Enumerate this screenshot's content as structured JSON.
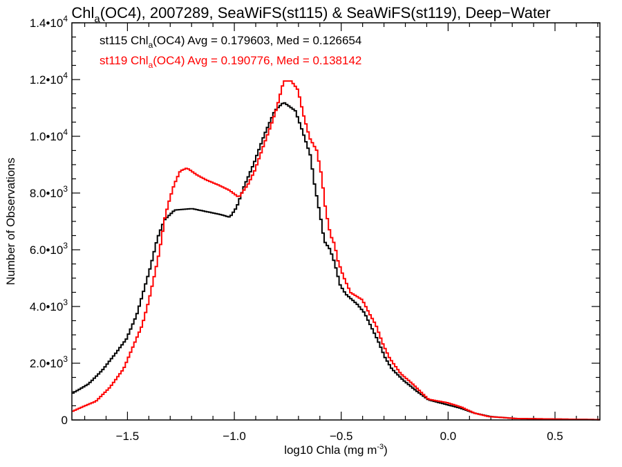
{
  "chart_data": {
    "type": "line",
    "title": {
      "pre": "Chl",
      "sub": "a",
      "post": "(OC4), 2007289, SeaWiFS(st115) & SeaWiFS(st119), Deep−Water"
    },
    "xlabel": {
      "pre": "log10 Chla (mg m",
      "sup": "-3",
      "post": ")"
    },
    "ylabel": "Number of Observations",
    "xlim": [
      -1.76,
      0.71
    ],
    "ylim": [
      0,
      14000
    ],
    "x_ticks": [
      {
        "value": -1.5,
        "label": "−1.5"
      },
      {
        "value": -1.0,
        "label": "−1.0"
      },
      {
        "value": -0.5,
        "label": "−0.5"
      },
      {
        "value": 0.0,
        "label": "0.0"
      },
      {
        "value": 0.5,
        "label": "0.5"
      }
    ],
    "y_ticks": [
      {
        "value": 0,
        "mant": "0",
        "exp": ""
      },
      {
        "value": 2000,
        "mant": "2.0•10",
        "exp": "3"
      },
      {
        "value": 4000,
        "mant": "4.0•10",
        "exp": "3"
      },
      {
        "value": 6000,
        "mant": "6.0•10",
        "exp": "3"
      },
      {
        "value": 8000,
        "mant": "8.0•10",
        "exp": "3"
      },
      {
        "value": 10000,
        "mant": "1.0•10",
        "exp": "4"
      },
      {
        "value": 12000,
        "mant": "1.2•10",
        "exp": "4"
      },
      {
        "value": 14000,
        "mant": "1.4•10",
        "exp": "4"
      }
    ],
    "bin_width": 0.01,
    "legend_placement": "top-left",
    "series": [
      {
        "name": "st115",
        "color": "#000000",
        "legend": {
          "pre": "st115 Chl",
          "sub": "a",
          "post": "(OC4) Avg = 0.179603, Med = 0.126654"
        },
        "points": [
          [
            -1.766,
            900
          ],
          [
            -1.682,
            1270
          ],
          [
            -1.618,
            1750
          ],
          [
            -1.553,
            2370
          ],
          [
            -1.505,
            2850
          ],
          [
            -1.457,
            3700
          ],
          [
            -1.424,
            4560
          ],
          [
            -1.392,
            5400
          ],
          [
            -1.36,
            6400
          ],
          [
            -1.327,
            7050
          ],
          [
            -1.279,
            7400
          ],
          [
            -1.198,
            7450
          ],
          [
            -1.134,
            7350
          ],
          [
            -1.069,
            7250
          ],
          [
            -1.021,
            7150
          ],
          [
            -0.989,
            7500
          ],
          [
            -0.956,
            8200
          ],
          [
            -0.908,
            9050
          ],
          [
            -0.86,
            10050
          ],
          [
            -0.811,
            10900
          ],
          [
            -0.769,
            11200
          ],
          [
            -0.715,
            10900
          ],
          [
            -0.682,
            10200
          ],
          [
            -0.643,
            9300
          ],
          [
            -0.627,
            8400
          ],
          [
            -0.595,
            7070
          ],
          [
            -0.579,
            6300
          ],
          [
            -0.553,
            6020
          ],
          [
            -0.531,
            5540
          ],
          [
            -0.505,
            4760
          ],
          [
            -0.479,
            4440
          ],
          [
            -0.424,
            4070
          ],
          [
            -0.392,
            3780
          ],
          [
            -0.36,
            3290
          ],
          [
            -0.327,
            2780
          ],
          [
            -0.295,
            2200
          ],
          [
            -0.263,
            1800
          ],
          [
            -0.208,
            1390
          ],
          [
            -0.156,
            1070
          ],
          [
            -0.092,
            710
          ],
          [
            -0.005,
            540
          ],
          [
            0.06,
            410
          ],
          [
            0.124,
            240
          ],
          [
            0.198,
            120
          ],
          [
            0.318,
            50
          ],
          [
            0.71,
            10
          ]
        ]
      },
      {
        "name": "st119",
        "color": "#ff0000",
        "legend": {
          "pre": "st119 Chl",
          "sub": "a",
          "post": "(OC4) Avg = 0.190776, Med = 0.138142"
        },
        "points": [
          [
            -1.776,
            240
          ],
          [
            -1.711,
            460
          ],
          [
            -1.647,
            660
          ],
          [
            -1.582,
            1150
          ],
          [
            -1.518,
            1800
          ],
          [
            -1.463,
            2780
          ],
          [
            -1.431,
            3340
          ],
          [
            -1.399,
            4240
          ],
          [
            -1.373,
            5120
          ],
          [
            -1.35,
            5950
          ],
          [
            -1.324,
            7170
          ],
          [
            -1.302,
            7800
          ],
          [
            -1.282,
            8290
          ],
          [
            -1.253,
            8780
          ],
          [
            -1.221,
            8880
          ],
          [
            -1.173,
            8630
          ],
          [
            -1.131,
            8460
          ],
          [
            -1.076,
            8290
          ],
          [
            -1.024,
            8100
          ],
          [
            -0.979,
            7850
          ],
          [
            -0.937,
            8290
          ],
          [
            -0.905,
            8780
          ],
          [
            -0.863,
            9680
          ],
          [
            -0.831,
            10340
          ],
          [
            -0.802,
            10980
          ],
          [
            -0.769,
            11950
          ],
          [
            -0.734,
            11950
          ],
          [
            -0.702,
            11630
          ],
          [
            -0.679,
            10830
          ],
          [
            -0.647,
            9930
          ],
          [
            -0.615,
            9510
          ],
          [
            -0.592,
            8630
          ],
          [
            -0.573,
            7410
          ],
          [
            -0.55,
            6510
          ],
          [
            -0.531,
            6190
          ],
          [
            -0.515,
            5610
          ],
          [
            -0.489,
            5050
          ],
          [
            -0.456,
            4490
          ],
          [
            -0.402,
            4240
          ],
          [
            -0.369,
            3760
          ],
          [
            -0.337,
            3340
          ],
          [
            -0.305,
            2680
          ],
          [
            -0.273,
            2170
          ],
          [
            -0.221,
            1630
          ],
          [
            -0.166,
            1270
          ],
          [
            -0.092,
            730
          ],
          [
            -0.005,
            610
          ],
          [
            0.06,
            460
          ],
          [
            0.124,
            240
          ],
          [
            0.189,
            120
          ],
          [
            0.318,
            50
          ],
          [
            0.71,
            10
          ]
        ]
      }
    ]
  }
}
